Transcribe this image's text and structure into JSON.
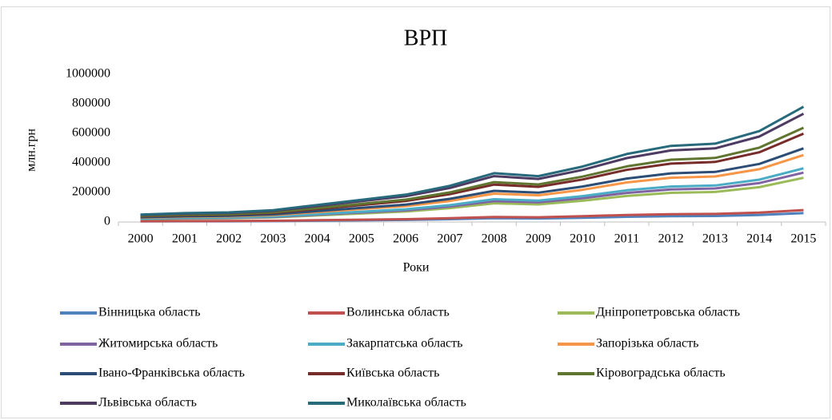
{
  "chart_data": {
    "type": "line",
    "stacked": true,
    "title": "ВРП",
    "x_label": "Роки",
    "y_label": "млн.грн",
    "categories": [
      "2000",
      "2001",
      "2002",
      "2003",
      "2004",
      "2005",
      "2006",
      "2007",
      "2008",
      "2009",
      "2010",
      "2011",
      "2012",
      "2013",
      "2014",
      "2015"
    ],
    "ylim": [
      0,
      1000000
    ],
    "yticks": [
      0,
      200000,
      400000,
      600000,
      800000,
      1000000
    ],
    "grid": false,
    "legend": "bottom",
    "series": [
      {
        "name": "Вінницька область",
        "color": "#4F81BD",
        "values": [
          3900,
          4600,
          5000,
          6200,
          8900,
          11600,
          14200,
          18900,
          25400,
          23900,
          28900,
          35400,
          39700,
          40800,
          47400,
          60000
        ]
      },
      {
        "name": "Волинська область",
        "color": "#C0504D",
        "values": [
          1300,
          1600,
          1700,
          2100,
          3000,
          3900,
          4800,
          6400,
          8600,
          8100,
          9800,
          12000,
          13400,
          13800,
          16000,
          20300
        ]
      },
      {
        "name": "Дніпропетровська область",
        "color": "#9BBB59",
        "values": [
          14000,
          16800,
          18200,
          22400,
          32200,
          42000,
          51800,
          68600,
          92400,
          86800,
          105000,
          128800,
          144200,
          148400,
          172200,
          218400
        ]
      },
      {
        "name": "Житомирська область",
        "color": "#8064A2",
        "values": [
          2300,
          2700,
          2900,
          3600,
          5200,
          6800,
          8300,
          11000,
          14900,
          14000,
          16900,
          20700,
          23200,
          23900,
          27700,
          35100
        ]
      },
      {
        "name": "Закарпатська область",
        "color": "#4BACC6",
        "values": [
          1900,
          2300,
          2500,
          3000,
          4400,
          5700,
          7000,
          9300,
          12500,
          11800,
          14300,
          17500,
          19600,
          20100,
          23400,
          29600
        ]
      },
      {
        "name": "Запорізька область",
        "color": "#F79646",
        "values": [
          5800,
          6900,
          7500,
          9200,
          13200,
          17300,
          21300,
          28200,
          38000,
          35700,
          43100,
          52900,
          59200,
          61000,
          70700,
          89700
        ]
      },
      {
        "name": "Івано-Франківська область",
        "color": "#2C4D75",
        "values": [
          2900,
          3500,
          3800,
          4600,
          6700,
          8700,
          10700,
          14200,
          19100,
          18000,
          21800,
          26700,
          29900,
          30700,
          35700,
          45200
        ]
      },
      {
        "name": "Київська область",
        "color": "#772C2A",
        "values": [
          6400,
          7700,
          8300,
          10200,
          14700,
          19200,
          23700,
          31400,
          42200,
          39700,
          48000,
          58900,
          65900,
          67800,
          78700,
          99800
        ]
      },
      {
        "name": "Кіровоградська область",
        "color": "#5F7530",
        "values": [
          2600,
          3100,
          3300,
          4100,
          5900,
          7700,
          9400,
          12500,
          16800,
          15800,
          19100,
          23500,
          26300,
          27000,
          31400,
          39800
        ]
      },
      {
        "name": "Львівська область",
        "color": "#4D3B62",
        "values": [
          6100,
          7300,
          7900,
          9800,
          14000,
          18300,
          22600,
          29900,
          40300,
          37800,
          45800,
          56100,
          62800,
          64700,
          75000,
          95200
        ]
      },
      {
        "name": "Миколаївська область",
        "color": "#276A7C",
        "values": [
          3000,
          3600,
          3900,
          4800,
          6900,
          9000,
          11100,
          14700,
          19800,
          18600,
          22500,
          27600,
          30900,
          31800,
          36900,
          46800
        ]
      }
    ]
  }
}
